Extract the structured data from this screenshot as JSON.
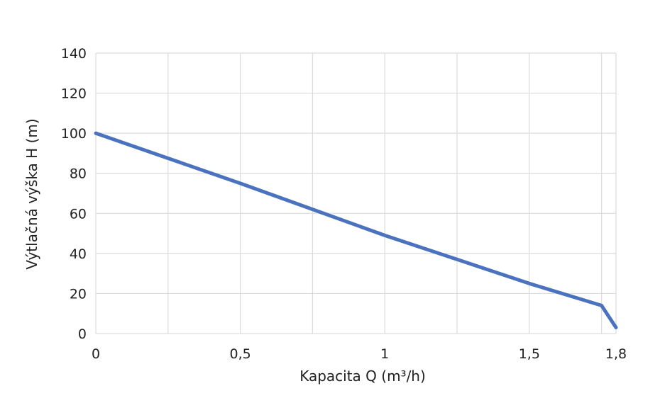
{
  "chart_data": {
    "type": "line",
    "title": "",
    "xlabel": "Kapacita Q (m³/h)",
    "ylabel": "Výtlačná výška H (m)",
    "xlim": [
      0,
      1.8
    ],
    "ylim": [
      0,
      140
    ],
    "x_ticks": [
      "0",
      "0,5",
      "1",
      "1,5",
      "1,8"
    ],
    "x_tick_values": [
      0,
      0.5,
      1,
      1.5,
      1.8
    ],
    "y_ticks": [
      "0",
      "20",
      "40",
      "60",
      "80",
      "100",
      "120",
      "140"
    ],
    "y_tick_values": [
      0,
      20,
      40,
      60,
      80,
      100,
      120,
      140
    ],
    "grid": true,
    "series": [
      {
        "color": "#4a72be",
        "x": [
          0,
          0.25,
          0.5,
          0.75,
          1.0,
          1.25,
          1.5,
          1.75,
          1.8
        ],
        "y": [
          100,
          87.5,
          75,
          62,
          49,
          37,
          25,
          14,
          3
        ]
      }
    ]
  }
}
